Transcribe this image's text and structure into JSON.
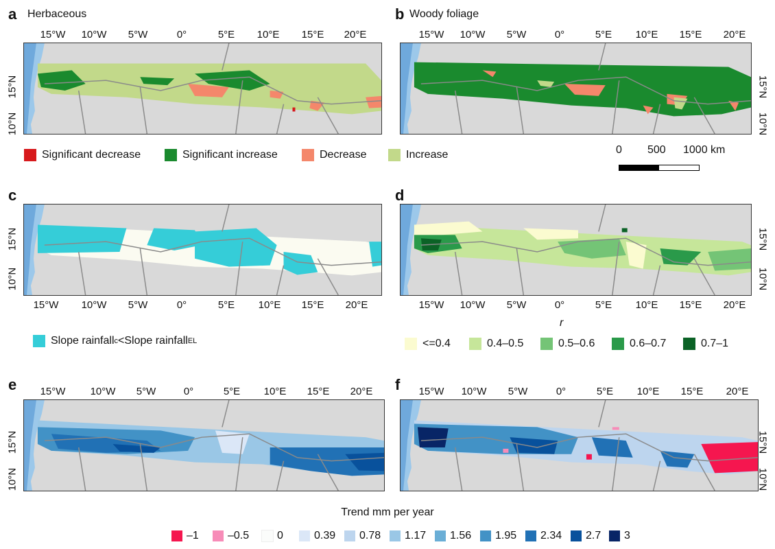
{
  "panels": {
    "a": {
      "letter": "a",
      "title": "Herbaceous"
    },
    "b": {
      "letter": "b",
      "title": "Woody foliage"
    },
    "c": {
      "letter": "c"
    },
    "d": {
      "letter": "d"
    },
    "e": {
      "letter": "e"
    },
    "f": {
      "letter": "f"
    }
  },
  "lon_ticks": [
    "15°W",
    "10°W",
    "5°W",
    "0°",
    "5°E",
    "10°E",
    "15°E",
    "20°E"
  ],
  "lat_ticks": [
    "15°N",
    "10°N"
  ],
  "legend_ab": {
    "items": [
      {
        "label": "Significant decrease",
        "color": "#d7191c"
      },
      {
        "label": "Significant increase",
        "color": "#1a8a2e"
      },
      {
        "label": "Decrease",
        "color": "#f4876b"
      },
      {
        "label": "Increase",
        "color": "#c2d98a"
      }
    ]
  },
  "scalebar": {
    "labels": [
      "0",
      "500",
      "1000 km"
    ]
  },
  "legend_c": {
    "label_main": "Slope rainfall",
    "sub1": "c",
    "mid": "<Slope rainfall",
    "sub2": "EL",
    "color": "#35cdd8"
  },
  "legend_d": {
    "title": "r",
    "items": [
      {
        "label": "<=0.4",
        "color": "#fbfbd0"
      },
      {
        "label": "0.4–0.5",
        "color": "#c6e69a"
      },
      {
        "label": "0.5–0.6",
        "color": "#74c476"
      },
      {
        "label": "0.6–0.7",
        "color": "#2a9a4a"
      },
      {
        "label": "0.7–1",
        "color": "#0b6226"
      }
    ]
  },
  "legend_ef": {
    "title": "Trend mm per year",
    "items": [
      {
        "label": "–1",
        "color": "#f5164f"
      },
      {
        "label": "–0.5",
        "color": "#f78cb8"
      },
      {
        "label": "0",
        "color": "#fbfcfb"
      },
      {
        "label": "0.39",
        "color": "#dbe7f7"
      },
      {
        "label": "0.78",
        "color": "#bdd5ee"
      },
      {
        "label": "1.17",
        "color": "#9ac7e6"
      },
      {
        "label": "1.56",
        "color": "#6aaed6"
      },
      {
        "label": "1.95",
        "color": "#4292c6"
      },
      {
        "label": "2.34",
        "color": "#2171b5"
      },
      {
        "label": "2.7",
        "color": "#08519c"
      },
      {
        "label": "3",
        "color": "#082566"
      }
    ]
  },
  "colors": {
    "land": "#d6d6d6",
    "ocean": "#9cc8ea",
    "border": "#8a8a8a"
  }
}
